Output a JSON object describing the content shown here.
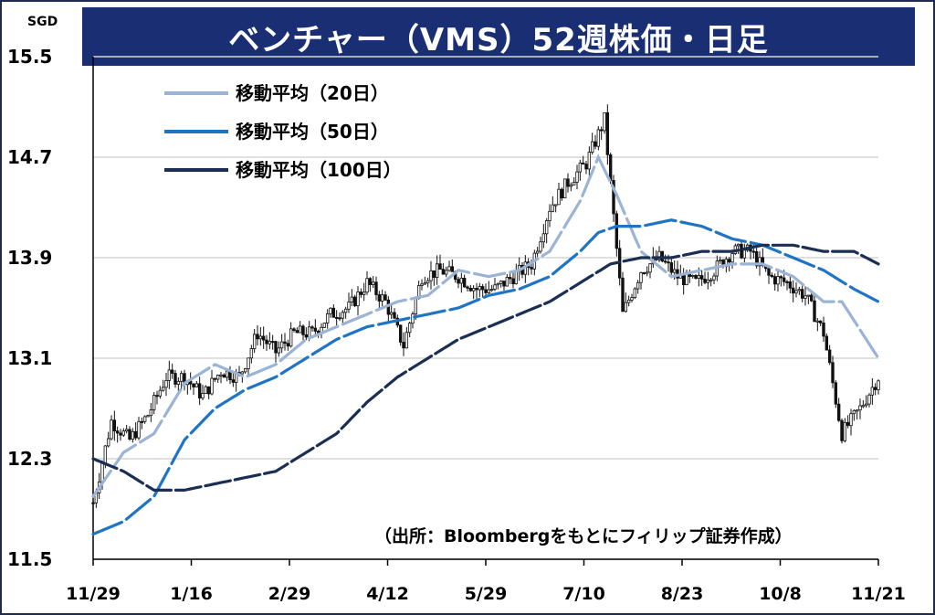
{
  "chart_data": {
    "type": "line",
    "title": "ベンチャー（VMS）52週株価・日足",
    "unit": "SGD",
    "ylim": [
      11.5,
      15.5
    ],
    "yticks": [
      "15.5",
      "14.7",
      "13.9",
      "13.1",
      "12.3",
      "11.5"
    ],
    "xticks": [
      "11/29",
      "1/16",
      "2/29",
      "4/12",
      "5/29",
      "7/10",
      "8/23",
      "10/8",
      "11/21"
    ],
    "grid": true,
    "legend_position": "top-left",
    "source": "（出所：Bloombergをもとにフィリップ証券作成）",
    "price_series": {
      "name": "日足",
      "x": [
        0,
        6,
        12,
        18,
        24,
        30,
        36,
        42,
        48,
        54,
        60,
        66,
        72,
        78,
        84,
        90,
        96,
        102,
        108,
        114,
        120,
        126,
        132,
        138,
        144,
        150,
        156,
        162,
        168,
        174,
        180,
        186,
        192,
        198,
        204,
        210,
        216,
        222,
        228,
        234,
        240,
        246,
        252,
        258
      ],
      "values": [
        11.95,
        12.6,
        12.45,
        12.65,
        12.95,
        12.95,
        12.8,
        13.0,
        12.95,
        13.3,
        13.15,
        13.3,
        13.3,
        13.45,
        13.5,
        13.7,
        13.55,
        13.2,
        13.75,
        13.8,
        13.75,
        13.65,
        13.65,
        13.75,
        13.85,
        14.3,
        14.5,
        14.65,
        15.0,
        13.45,
        13.8,
        13.9,
        13.75,
        13.7,
        13.8,
        13.95,
        13.95,
        13.75,
        13.7,
        13.6,
        13.3,
        12.5,
        12.7,
        12.95
      ]
    },
    "series": [
      {
        "name": "移動平均（20日）",
        "color": "#9bb4d6",
        "x": [
          0,
          10,
          20,
          30,
          40,
          50,
          60,
          70,
          80,
          90,
          100,
          110,
          120,
          130,
          140,
          150,
          160,
          166,
          172,
          180,
          190,
          200,
          210,
          220,
          230,
          240,
          246,
          258
        ],
        "values": [
          12.0,
          12.35,
          12.5,
          12.9,
          13.05,
          12.95,
          13.05,
          13.25,
          13.35,
          13.45,
          13.55,
          13.6,
          13.8,
          13.75,
          13.8,
          13.95,
          14.35,
          14.7,
          14.4,
          13.95,
          13.75,
          13.8,
          13.85,
          13.85,
          13.75,
          13.55,
          13.55,
          13.1
        ]
      },
      {
        "name": "移動平均（50日）",
        "color": "#1f74c4",
        "x": [
          0,
          10,
          20,
          30,
          40,
          50,
          60,
          70,
          80,
          90,
          100,
          110,
          120,
          130,
          140,
          150,
          160,
          166,
          172,
          180,
          190,
          200,
          210,
          220,
          230,
          240,
          250,
          258
        ],
        "values": [
          11.7,
          11.8,
          12.0,
          12.45,
          12.7,
          12.85,
          12.95,
          13.1,
          13.25,
          13.35,
          13.4,
          13.45,
          13.5,
          13.6,
          13.65,
          13.75,
          13.95,
          14.1,
          14.15,
          14.15,
          14.2,
          14.15,
          14.05,
          14.0,
          13.9,
          13.8,
          13.65,
          13.55
        ]
      },
      {
        "name": "移動平均（100日）",
        "color": "#1b2f55",
        "x": [
          0,
          10,
          20,
          30,
          40,
          50,
          60,
          70,
          80,
          90,
          100,
          110,
          120,
          130,
          140,
          150,
          160,
          170,
          180,
          190,
          200,
          210,
          220,
          230,
          240,
          250,
          258
        ],
        "values": [
          12.3,
          12.2,
          12.05,
          12.05,
          12.1,
          12.15,
          12.2,
          12.35,
          12.5,
          12.75,
          12.95,
          13.1,
          13.25,
          13.35,
          13.45,
          13.55,
          13.7,
          13.85,
          13.9,
          13.9,
          13.95,
          13.95,
          14.0,
          14.0,
          13.95,
          13.95,
          13.85
        ]
      }
    ]
  }
}
